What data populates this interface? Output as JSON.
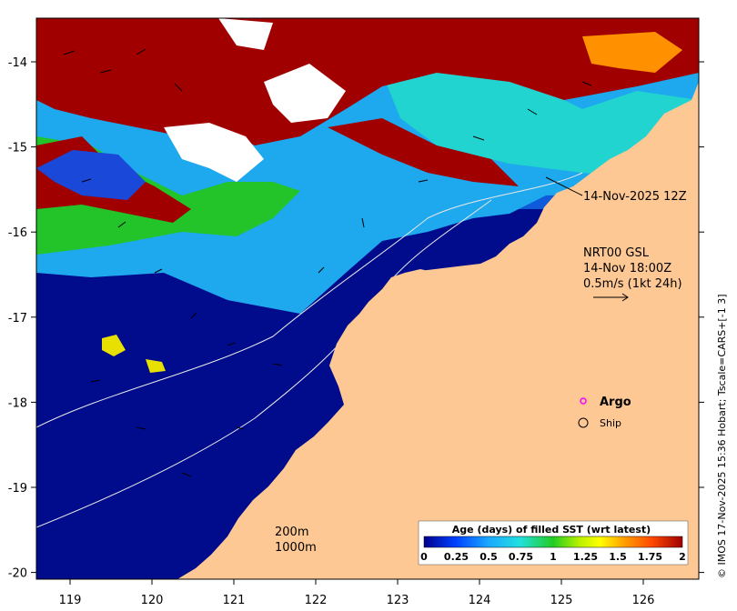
{
  "map": {
    "lon_ticks": [
      119,
      120,
      121,
      122,
      123,
      124,
      125,
      126
    ],
    "lat_ticks": [
      -14,
      -15,
      -16,
      -17,
      -18,
      -19,
      -20
    ],
    "colors": {
      "land": "#fdc894",
      "white_gap": "#ffffff",
      "frame": "#000000"
    }
  },
  "annotations": {
    "image_time": "14-Nov-2025 12Z",
    "current_product": "NRT00 GSL",
    "current_time": "14-Nov 18:00Z",
    "current_scale": "0.5m/s (1kt 24h)"
  },
  "symbols": {
    "argo_label": "Argo",
    "ship_label": "Ship",
    "argo_color": "#ff00ff"
  },
  "contours": {
    "label_200": "200m",
    "label_1000": "1000m"
  },
  "colorbar": {
    "title": "Age (days) of filled SST (wrt latest)",
    "ticks": [
      "0",
      "0.25",
      "0.5",
      "0.75",
      "1",
      "1.25",
      "1.5",
      "1.75",
      "2"
    ],
    "stops": [
      "#00008c",
      "#0040ff",
      "#1aa8ff",
      "#22e0e0",
      "#22cc22",
      "#b8f000",
      "#ffff00",
      "#ff9a00",
      "#ff4a00",
      "#a00000"
    ]
  },
  "credit": "© IMOS 17-Nov-2025 15:36 Hobart; Tscale=CARS+[-1 3]"
}
